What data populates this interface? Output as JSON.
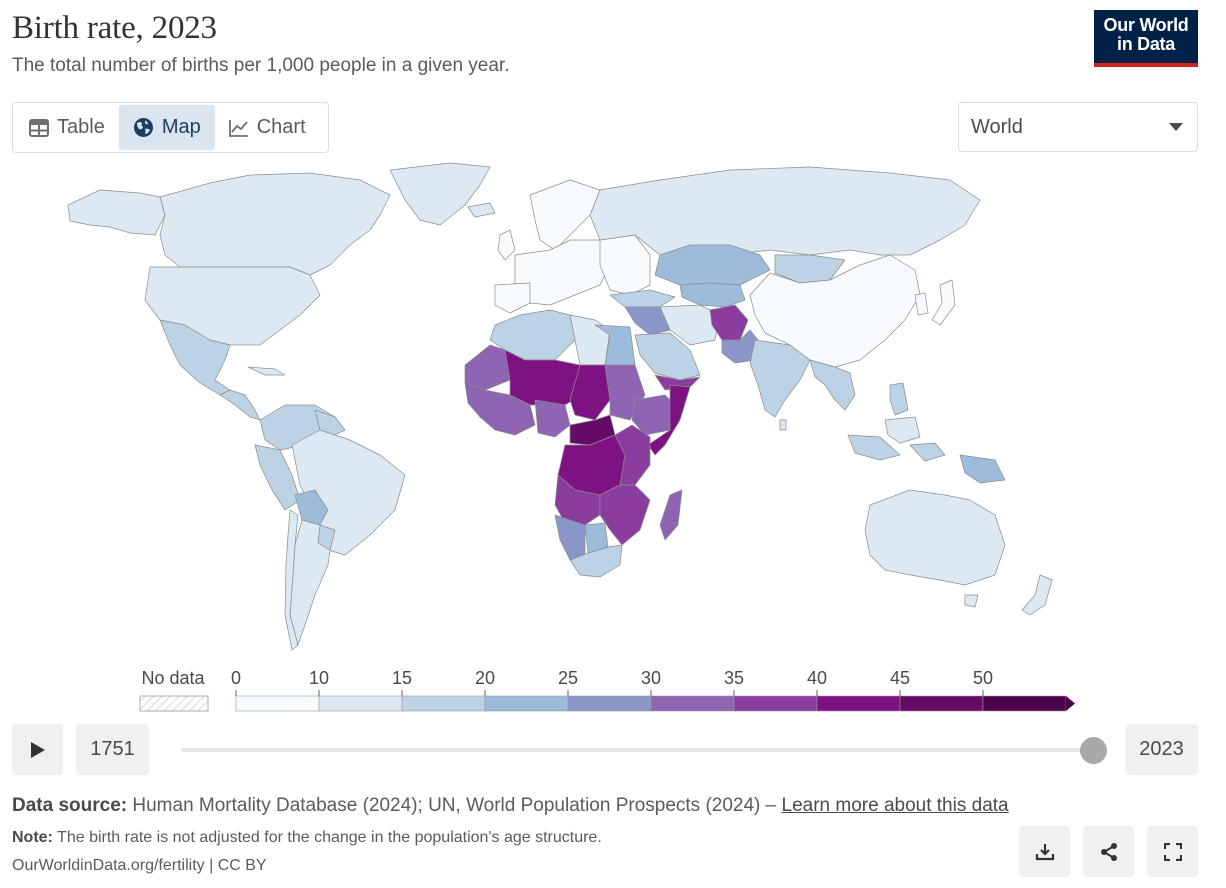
{
  "header": {
    "title": "Birth rate, 2023",
    "subtitle": "The total number of births per 1,000 people in a given year.",
    "logo_line1": "Our World",
    "logo_line2": "in Data"
  },
  "tabs": [
    {
      "label": "Table",
      "icon": "table-icon",
      "active": false
    },
    {
      "label": "Map",
      "icon": "globe-icon",
      "active": true
    },
    {
      "label": "Chart",
      "icon": "line-chart-icon",
      "active": false
    }
  ],
  "region_select": {
    "value": "World"
  },
  "map": {
    "type": "choropleth",
    "region": "World",
    "year": "2023",
    "colors": {
      "bin_0_10": "#f7fbfd",
      "bin_10_15": "#dce9f3",
      "bin_15_20": "#bcd3e6",
      "bin_20_25": "#9dbcdb",
      "bin_25_30": "#8b96c8",
      "bin_30_35": "#8e64b3",
      "bin_35_40": "#8a3d9f",
      "bin_40_45": "#7e1283",
      "bin_45_50": "#650b67",
      "bin_50_plus": "#4d004b",
      "border": "#9a9a9a"
    }
  },
  "legend": {
    "no_data_label": "No data",
    "ticks": [
      "0",
      "10",
      "15",
      "20",
      "25",
      "30",
      "35",
      "40",
      "45",
      "50"
    ],
    "colors": [
      "#f7fbfd",
      "#dce9f3",
      "#bcd3e6",
      "#9dbcdb",
      "#8b96c8",
      "#8e64b3",
      "#8a3d9f",
      "#7e1283",
      "#650b67",
      "#4d004b"
    ]
  },
  "timeline": {
    "start_year": "1751",
    "end_year": "2023",
    "progress": 1.0
  },
  "footer": {
    "source_label": "Data source:",
    "source_text": " Human Mortality Database (2024); UN, World Population Prospects (2024) – ",
    "source_link": "Learn more about this data",
    "note_label": "Note:",
    "note_text": " The birth rate is not adjusted for the change in the population's age structure.",
    "url": "OurWorldinData.org/fertility | CC BY"
  },
  "actions": [
    {
      "name": "download-button",
      "icon": "download-icon"
    },
    {
      "name": "share-button",
      "icon": "share-icon"
    },
    {
      "name": "fullscreen-button",
      "icon": "fullscreen-icon"
    }
  ]
}
